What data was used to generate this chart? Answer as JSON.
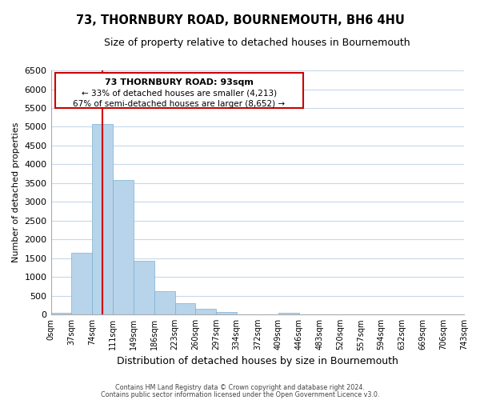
{
  "title": "73, THORNBURY ROAD, BOURNEMOUTH, BH6 4HU",
  "subtitle": "Size of property relative to detached houses in Bournemouth",
  "xlabel": "Distribution of detached houses by size in Bournemouth",
  "ylabel": "Number of detached properties",
  "bar_edges": [
    0,
    37,
    74,
    111,
    149,
    186,
    223,
    260,
    297,
    334,
    372,
    409,
    446,
    483,
    520,
    557,
    594,
    632,
    669,
    706,
    743
  ],
  "bar_heights": [
    50,
    1650,
    5080,
    3580,
    1430,
    620,
    310,
    150,
    60,
    0,
    0,
    50,
    0,
    0,
    0,
    0,
    0,
    0,
    0,
    0
  ],
  "bar_color": "#b8d4ea",
  "bar_edgecolor": "#7aafd4",
  "vline_x": 93,
  "vline_color": "#cc0000",
  "ylim": [
    0,
    6500
  ],
  "yticks": [
    0,
    500,
    1000,
    1500,
    2000,
    2500,
    3000,
    3500,
    4000,
    4500,
    5000,
    5500,
    6000,
    6500
  ],
  "xtick_labels": [
    "0sqm",
    "37sqm",
    "74sqm",
    "111sqm",
    "149sqm",
    "186sqm",
    "223sqm",
    "260sqm",
    "297sqm",
    "334sqm",
    "372sqm",
    "409sqm",
    "446sqm",
    "483sqm",
    "520sqm",
    "557sqm",
    "594sqm",
    "632sqm",
    "669sqm",
    "706sqm",
    "743sqm"
  ],
  "annotation_box_text_line1": "73 THORNBURY ROAD: 93sqm",
  "annotation_box_text_line2": "← 33% of detached houses are smaller (4,213)",
  "annotation_box_text_line3": "67% of semi-detached houses are larger (8,652) →",
  "footer_line1": "Contains HM Land Registry data © Crown copyright and database right 2024.",
  "footer_line2": "Contains public sector information licensed under the Open Government Licence v3.0.",
  "background_color": "#ffffff",
  "grid_color": "#c8d8ec",
  "title_fontsize": 10.5,
  "subtitle_fontsize": 9
}
